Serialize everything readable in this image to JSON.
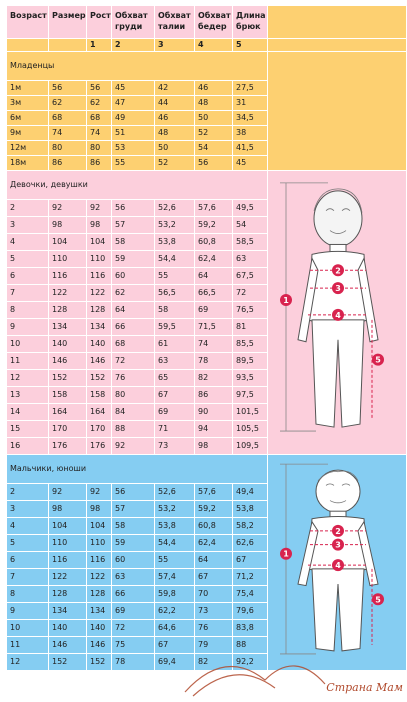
{
  "header": [
    "Возраст",
    "Размер",
    "Рост",
    "Обхват груди",
    "Обхват талии",
    "Обхват бедер",
    "Длина брюк"
  ],
  "numbers": [
    "",
    "",
    "1",
    "2",
    "3",
    "4",
    "5"
  ],
  "sections": {
    "infants": {
      "title": "Младенцы",
      "rows": [
        [
          "1м",
          "56",
          "56",
          "45",
          "42",
          "46",
          "27,5"
        ],
        [
          "3м",
          "62",
          "62",
          "47",
          "44",
          "48",
          "31"
        ],
        [
          "6м",
          "68",
          "68",
          "49",
          "46",
          "50",
          "34,5"
        ],
        [
          "9м",
          "74",
          "74",
          "51",
          "48",
          "52",
          "38"
        ],
        [
          "12м",
          "80",
          "80",
          "53",
          "50",
          "54",
          "41,5"
        ],
        [
          "18м",
          "86",
          "86",
          "55",
          "52",
          "56",
          "45"
        ]
      ]
    },
    "girls": {
      "title": "Девочки, девушки",
      "rows": [
        [
          "2",
          "92",
          "92",
          "56",
          "52,6",
          "57,6",
          "49,5"
        ],
        [
          "3",
          "98",
          "98",
          "57",
          "53,2",
          "59,2",
          "54"
        ],
        [
          "4",
          "104",
          "104",
          "58",
          "53,8",
          "60,8",
          "58,5"
        ],
        [
          "5",
          "110",
          "110",
          "59",
          "54,4",
          "62,4",
          "63"
        ],
        [
          "6",
          "116",
          "116",
          "60",
          "55",
          "64",
          "67,5"
        ],
        [
          "7",
          "122",
          "122",
          "62",
          "56,5",
          "66,5",
          "72"
        ],
        [
          "8",
          "128",
          "128",
          "64",
          "58",
          "69",
          "76,5"
        ],
        [
          "9",
          "134",
          "134",
          "66",
          "59,5",
          "71,5",
          "81"
        ],
        [
          "10",
          "140",
          "140",
          "68",
          "61",
          "74",
          "85,5"
        ],
        [
          "11",
          "146",
          "146",
          "72",
          "63",
          "78",
          "89,5"
        ],
        [
          "12",
          "152",
          "152",
          "76",
          "65",
          "82",
          "93,5"
        ],
        [
          "13",
          "158",
          "158",
          "80",
          "67",
          "86",
          "97,5"
        ],
        [
          "14",
          "164",
          "164",
          "84",
          "69",
          "90",
          "101,5"
        ],
        [
          "15",
          "170",
          "170",
          "88",
          "71",
          "94",
          "105,5"
        ],
        [
          "16",
          "176",
          "176",
          "92",
          "73",
          "98",
          "109,5"
        ]
      ]
    },
    "boys": {
      "title": "Мальчики, юноши",
      "rows": [
        [
          "2",
          "92",
          "92",
          "56",
          "52,6",
          "57,6",
          "49,4"
        ],
        [
          "3",
          "98",
          "98",
          "57",
          "53,2",
          "59,2",
          "53,8"
        ],
        [
          "4",
          "104",
          "104",
          "58",
          "53,8",
          "60,8",
          "58,2"
        ],
        [
          "5",
          "110",
          "110",
          "59",
          "54,4",
          "62,4",
          "62,6"
        ],
        [
          "6",
          "116",
          "116",
          "60",
          "55",
          "64",
          "67"
        ],
        [
          "7",
          "122",
          "122",
          "63",
          "57,4",
          "67",
          "71,2"
        ],
        [
          "8",
          "128",
          "128",
          "66",
          "59,8",
          "70",
          "75,4"
        ],
        [
          "9",
          "134",
          "134",
          "69",
          "62,2",
          "73",
          "79,6"
        ],
        [
          "10",
          "140",
          "140",
          "72",
          "64,6",
          "76",
          "83,8"
        ],
        [
          "11",
          "146",
          "146",
          "75",
          "67",
          "79",
          "88"
        ],
        [
          "12",
          "152",
          "152",
          "78",
          "69,4",
          "82",
          "92,2"
        ]
      ]
    }
  },
  "figure_markers": [
    "1",
    "2",
    "3",
    "4",
    "5"
  ],
  "watermark": "Страна Мам",
  "colors": {
    "infants": "#fdd071",
    "girls": "#fccfdc",
    "boys": "#85cdf2",
    "marker": "#d8234e"
  }
}
